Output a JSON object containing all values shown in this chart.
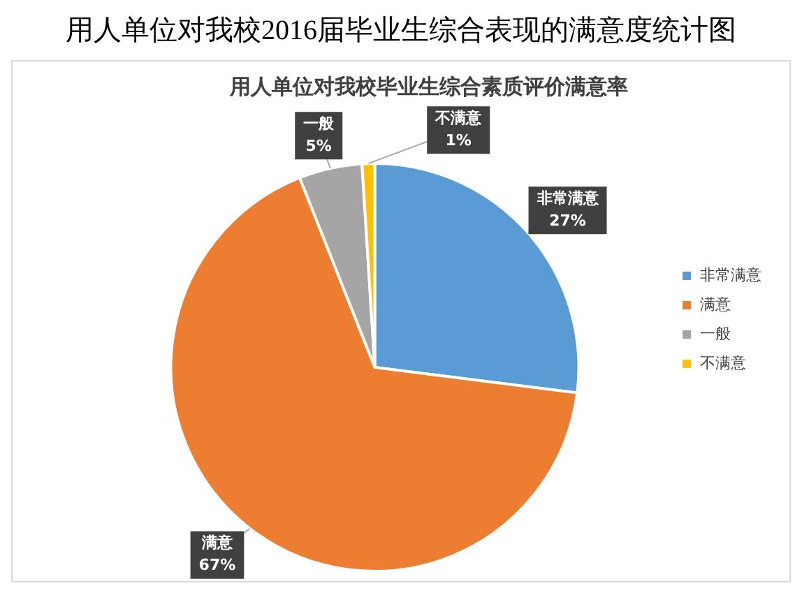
{
  "chart_data": {
    "type": "pie",
    "title": "用人单位对我校2016届毕业生综合表现的满意度统计图",
    "subtitle": "用人单位对我校毕业生综合素质评价满意率",
    "categories": [
      "非常满意",
      "满意",
      "一般",
      "不满意"
    ],
    "values": [
      27,
      67,
      5,
      1
    ],
    "value_labels": [
      "27%",
      "67%",
      "5%",
      "1%"
    ],
    "colors": [
      "#5b9bd5",
      "#ed7d31",
      "#a5a5a5",
      "#ffc000"
    ],
    "legend": "right"
  }
}
